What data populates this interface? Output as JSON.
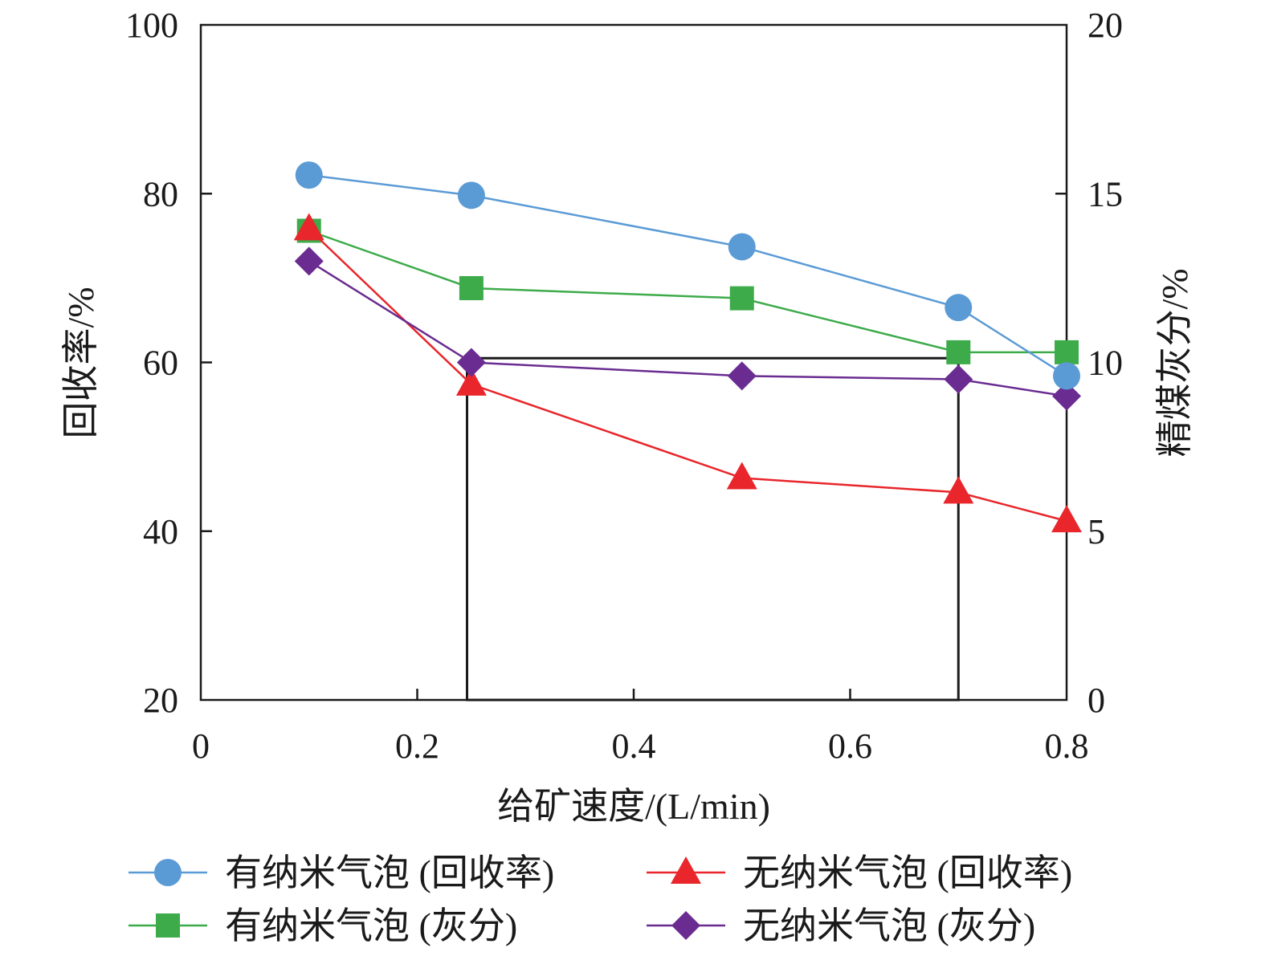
{
  "chart_data": {
    "type": "line",
    "xlabel": "给矿速度/(L/min)",
    "ylabel_left": "回收率/%",
    "ylabel_right": "精煤灰分/%",
    "xlim": [
      0,
      0.8
    ],
    "ylim_left": [
      20,
      100
    ],
    "ylim_right": [
      0,
      20
    ],
    "x_ticks": [
      "0",
      "0.2",
      "0.4",
      "0.6",
      "0.8"
    ],
    "y_left_ticks": [
      "20",
      "40",
      "60",
      "80",
      "100"
    ],
    "y_right_ticks": [
      "0",
      "5",
      "10",
      "15",
      "20"
    ],
    "grid": false,
    "legend_position": "bottom",
    "highlight_box": {
      "x": [
        0.246,
        0.7
      ],
      "y_left": [
        20,
        60.5
      ]
    },
    "series": [
      {
        "name": "有纳米气泡 (回收率)",
        "axis": "left",
        "color": "#5b9bd5",
        "marker": "circle",
        "x": [
          0.1,
          0.25,
          0.5,
          0.7,
          0.8
        ],
        "values": [
          82.2,
          79.8,
          73.7,
          66.5,
          58.4
        ]
      },
      {
        "name": "无纳米气泡 (回收率)",
        "axis": "left",
        "color": "#e8262b",
        "marker": "triangle",
        "x": [
          0.1,
          0.25,
          0.5,
          0.7,
          0.8
        ],
        "values": [
          75.8,
          57.4,
          46.3,
          44.6,
          41.2
        ]
      },
      {
        "name": "有纳米气泡 (灰分)",
        "axis": "right",
        "color": "#3dab4a",
        "marker": "square",
        "x": [
          0.1,
          0.25,
          0.5,
          0.7,
          0.8
        ],
        "values": [
          13.9,
          12.2,
          11.9,
          10.3,
          10.3
        ]
      },
      {
        "name": "无纳米气泡 (灰分)",
        "axis": "right",
        "color": "#6a2c91",
        "marker": "diamond",
        "x": [
          0.1,
          0.25,
          0.5,
          0.7,
          0.8
        ],
        "values": [
          13.0,
          10.0,
          9.6,
          9.5,
          9.0
        ]
      }
    ]
  }
}
